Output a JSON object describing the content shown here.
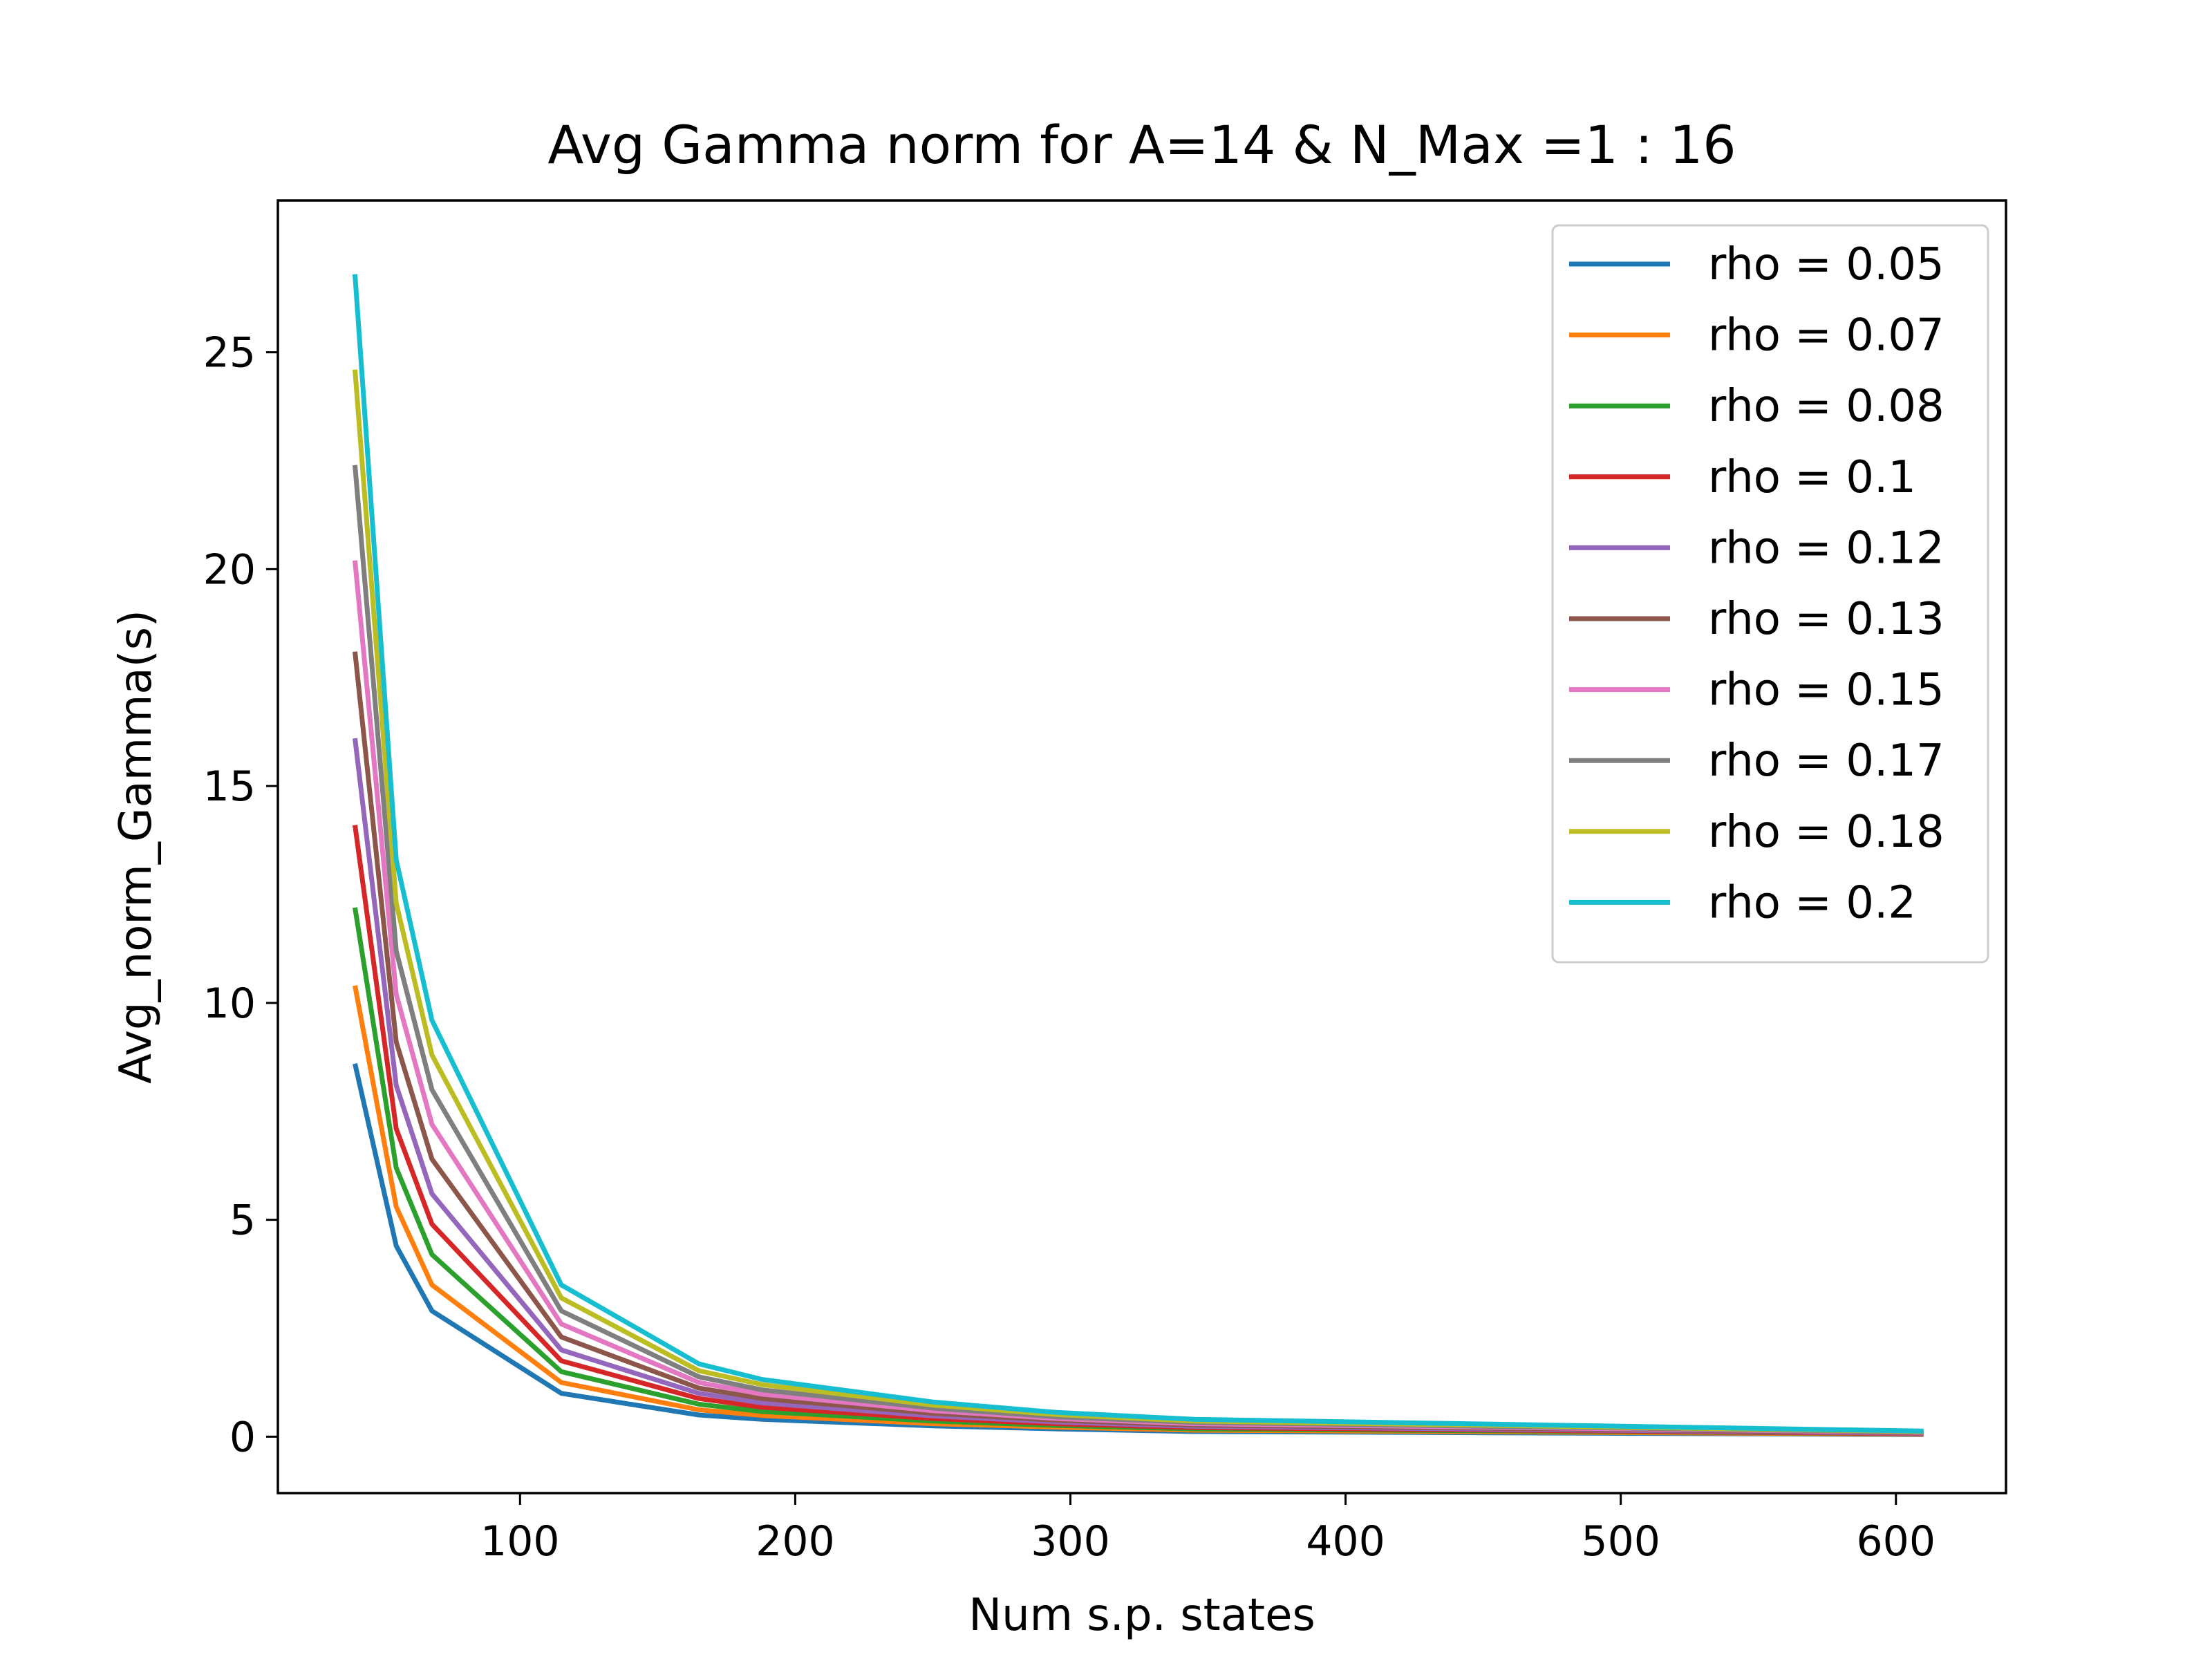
{
  "chart_data": {
    "type": "line",
    "title": "Avg Gamma norm for A=14 & N_Max =1 : 16",
    "xlabel": "Num s.p. states",
    "ylabel": "Avg_norm_Gamma(s)",
    "xlim": [
      12,
      640
    ],
    "ylim": [
      -1.3,
      28.5
    ],
    "xticks": [
      100,
      200,
      300,
      400,
      500,
      600
    ],
    "yticks": [
      0,
      5,
      10,
      15,
      20,
      25
    ],
    "legend_position": "top-right",
    "grid": false,
    "x": [
      40,
      55,
      68,
      115,
      165,
      188,
      250,
      295,
      345,
      610
    ],
    "series": [
      {
        "name": "rho = 0.05",
        "color": "#1f77b4",
        "values": [
          8.6,
          4.4,
          2.9,
          1.0,
          0.5,
          0.4,
          0.25,
          0.18,
          0.12,
          0.05
        ]
      },
      {
        "name": "rho = 0.07",
        "color": "#ff7f0e",
        "values": [
          10.4,
          5.3,
          3.5,
          1.25,
          0.62,
          0.49,
          0.3,
          0.22,
          0.15,
          0.06
        ]
      },
      {
        "name": "rho = 0.08",
        "color": "#2ca02c",
        "values": [
          12.2,
          6.2,
          4.2,
          1.5,
          0.75,
          0.58,
          0.36,
          0.26,
          0.18,
          0.07
        ]
      },
      {
        "name": "rho = 0.1",
        "color": "#d62728",
        "values": [
          14.1,
          7.1,
          4.9,
          1.75,
          0.88,
          0.68,
          0.42,
          0.3,
          0.21,
          0.07
        ]
      },
      {
        "name": "rho = 0.12",
        "color": "#9467bd",
        "values": [
          16.1,
          8.1,
          5.6,
          2.0,
          1.0,
          0.78,
          0.48,
          0.34,
          0.24,
          0.08
        ]
      },
      {
        "name": "rho = 0.13",
        "color": "#8c564b",
        "values": [
          18.1,
          9.1,
          6.4,
          2.3,
          1.12,
          0.88,
          0.54,
          0.38,
          0.27,
          0.09
        ]
      },
      {
        "name": "rho = 0.15",
        "color": "#e377c2",
        "values": [
          20.2,
          10.2,
          7.2,
          2.6,
          1.25,
          0.98,
          0.6,
          0.42,
          0.3,
          0.1
        ]
      },
      {
        "name": "rho = 0.17",
        "color": "#7f7f7f",
        "values": [
          22.4,
          11.2,
          8.0,
          2.9,
          1.38,
          1.08,
          0.66,
          0.46,
          0.33,
          0.11
        ]
      },
      {
        "name": "rho = 0.18",
        "color": "#bcbd22",
        "values": [
          24.6,
          12.3,
          8.8,
          3.2,
          1.52,
          1.2,
          0.73,
          0.51,
          0.36,
          0.12
        ]
      },
      {
        "name": "rho = 0.2",
        "color": "#17becf",
        "values": [
          26.8,
          13.3,
          9.6,
          3.5,
          1.68,
          1.32,
          0.8,
          0.56,
          0.4,
          0.13
        ]
      }
    ]
  }
}
